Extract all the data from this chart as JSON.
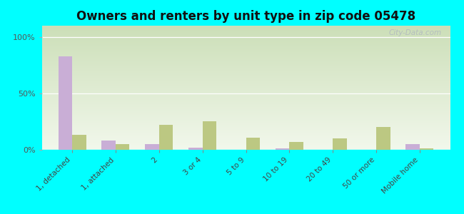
{
  "title": "Owners and renters by unit type in zip code 05478",
  "categories": [
    "1, detached",
    "1, attached",
    "2",
    "3 or 4",
    "5 to 9",
    "10 to 19",
    "20 to 49",
    "50 or more",
    "Mobile home"
  ],
  "owner_values": [
    83,
    8,
    5,
    2,
    0,
    1,
    0,
    0,
    5
  ],
  "renter_values": [
    13,
    5,
    22,
    25,
    11,
    7,
    10,
    20,
    1
  ],
  "owner_color": "#c9aed6",
  "renter_color": "#bcc882",
  "bg_outer": "#00ffff",
  "yticks": [
    0,
    50,
    100
  ],
  "yticklabels": [
    "0%",
    "50%",
    "100%"
  ],
  "ylim": [
    0,
    110
  ],
  "bar_width": 0.32,
  "title_fontsize": 12,
  "watermark": "City-Data.com",
  "grad_top_left": "#c8ddb0",
  "grad_top_right": "#e8f4e8",
  "grad_bottom": "#f0f8e8"
}
